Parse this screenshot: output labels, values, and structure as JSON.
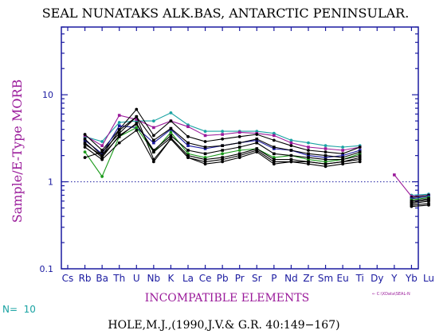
{
  "colors": {
    "frame": "#1a1aa0",
    "purple": "#9a1a9a",
    "teal": "#1aa3a3",
    "text": "#000000",
    "ref_dotted": "#1a1aa0"
  },
  "chart_data": {
    "type": "line",
    "title": "SEAL NUNATAKS ALK.BAS, ANTARCTIC PENINSULAR.",
    "xlabel": "INCOMPATIBLE ELEMENTS",
    "ylabel": "Sample/E-Type MORB",
    "y_scale": "log",
    "ylim": [
      0.1,
      60
    ],
    "y_ticks": [
      {
        "value": 0.1,
        "label": "0.1"
      },
      {
        "value": 1,
        "label": "1"
      },
      {
        "value": 10,
        "label": "10"
      }
    ],
    "categories": [
      "Cs",
      "Rb",
      "Ba",
      "Th",
      "U",
      "Nb",
      "K",
      "La",
      "Ce",
      "Pb",
      "Pr",
      "Sr",
      "P",
      "Nd",
      "Zr",
      "Sm",
      "Eu",
      "Ti",
      "Dy",
      "Y",
      "Yb",
      "Lu"
    ],
    "ref_line": 1,
    "n_label": "N=  10",
    "legend_note": "← C:\\XData\\SEAL-N",
    "citation": "HOLE,M.J.,(1990,J.V.& G.R. 40:149−167)",
    "series": [
      {
        "color": "#1aa3a3",
        "marker": "circle",
        "values": [
          null,
          3.3,
          2.9,
          4.8,
          5.0,
          5.0,
          6.2,
          4.5,
          3.8,
          3.8,
          3.8,
          3.8,
          3.6,
          3.0,
          2.8,
          2.6,
          2.5,
          2.6,
          null,
          null,
          0.7,
          0.72
        ]
      },
      {
        "color": "#9a1a9a",
        "marker": "square",
        "values": [
          null,
          3.4,
          2.6,
          5.8,
          5.2,
          4.2,
          5.0,
          4.3,
          3.4,
          3.5,
          3.7,
          3.6,
          3.4,
          2.8,
          2.5,
          2.4,
          2.3,
          2.5,
          null,
          1.2,
          0.68,
          0.7
        ]
      },
      {
        "color": "#000000",
        "marker": "circle",
        "values": [
          null,
          3.5,
          2.3,
          4.0,
          6.8,
          3.4,
          5.0,
          3.3,
          2.9,
          3.1,
          3.3,
          3.5,
          3.0,
          2.6,
          2.3,
          2.2,
          2.1,
          2.5,
          null,
          null,
          0.66,
          0.7
        ]
      },
      {
        "color": "#1a1aa0",
        "marker": "square",
        "values": [
          null,
          3.0,
          2.1,
          4.4,
          4.2,
          2.8,
          4.0,
          2.6,
          2.4,
          2.6,
          2.8,
          3.0,
          2.4,
          2.3,
          2.0,
          1.9,
          2.0,
          2.3,
          null,
          null,
          0.64,
          0.68
        ]
      },
      {
        "color": "#1a9a1a",
        "marker": "circle",
        "values": [
          null,
          2.2,
          1.15,
          3.3,
          4.2,
          2.2,
          3.7,
          2.1,
          1.9,
          2.1,
          2.3,
          2.4,
          1.9,
          2.0,
          1.8,
          1.7,
          1.8,
          2.1,
          null,
          null,
          0.62,
          0.66
        ]
      },
      {
        "color": "#000000",
        "marker": "square",
        "values": [
          null,
          3.1,
          2.0,
          3.9,
          5.6,
          3.0,
          4.1,
          2.8,
          2.5,
          2.6,
          2.8,
          3.1,
          2.5,
          2.3,
          2.1,
          2.0,
          1.9,
          2.2,
          null,
          null,
          0.6,
          0.64
        ]
      },
      {
        "color": "#000000",
        "marker": "square",
        "values": [
          null,
          2.8,
          1.9,
          3.4,
          4.6,
          2.3,
          3.4,
          2.3,
          2.1,
          2.3,
          2.5,
          2.8,
          2.1,
          2.0,
          1.9,
          1.8,
          1.8,
          2.0,
          null,
          null,
          0.58,
          0.62
        ]
      },
      {
        "color": "#000000",
        "marker": "square",
        "values": [
          null,
          2.7,
          2.0,
          3.3,
          4.7,
          2.2,
          3.2,
          2.0,
          1.8,
          1.9,
          2.1,
          2.4,
          1.8,
          1.8,
          1.7,
          1.6,
          1.7,
          1.9,
          null,
          null,
          0.56,
          0.6
        ]
      },
      {
        "color": "#000000",
        "marker": "circle",
        "values": [
          null,
          1.9,
          2.2,
          3.6,
          5.6,
          1.8,
          3.1,
          1.9,
          1.7,
          1.8,
          2.0,
          2.3,
          1.7,
          1.7,
          1.7,
          1.6,
          1.7,
          1.8,
          null,
          null,
          0.54,
          0.56
        ]
      },
      {
        "color": "#000000",
        "marker": "circle",
        "values": [
          null,
          2.5,
          1.8,
          2.8,
          3.9,
          1.7,
          3.1,
          1.9,
          1.6,
          1.7,
          1.9,
          2.2,
          1.6,
          1.7,
          1.6,
          1.5,
          1.6,
          1.7,
          null,
          null,
          0.52,
          0.54
        ]
      }
    ]
  }
}
